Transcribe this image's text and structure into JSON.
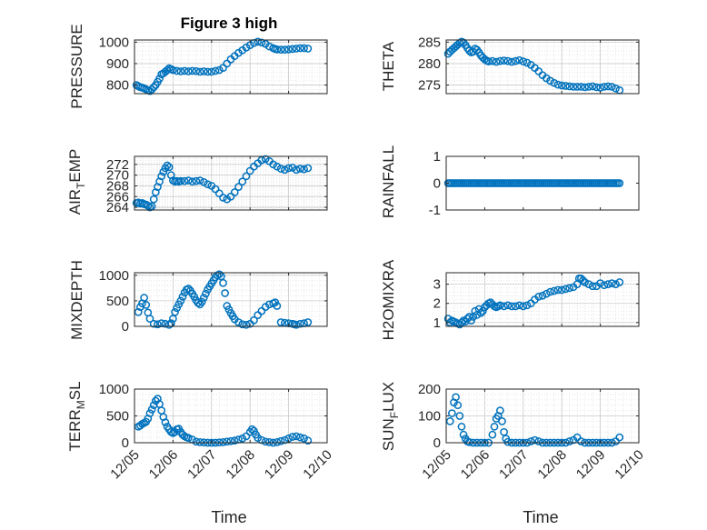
{
  "figure": {
    "title": "Figure 3 high",
    "xlabel": "Time",
    "x_tick_labels": [
      "12/05",
      "12/06",
      "12/07",
      "12/08",
      "12/09",
      "12/10"
    ],
    "marker_color": "#0072BD",
    "axis_color": "#262626",
    "grid_color": "#c8c8c8"
  },
  "chart_data": [
    {
      "type": "scatter",
      "name": "PRESSURE",
      "ylabel": "PRESSURE",
      "xlim": [
        0,
        5
      ],
      "ylim": [
        760,
        1010
      ],
      "yticks": [
        800,
        900,
        1000
      ],
      "grid": true,
      "x": [
        0.05,
        0.1,
        0.15,
        0.2,
        0.25,
        0.3,
        0.35,
        0.4,
        0.45,
        0.5,
        0.55,
        0.6,
        0.65,
        0.7,
        0.75,
        0.8,
        0.85,
        0.9,
        0.95,
        1.0,
        1.1,
        1.2,
        1.3,
        1.4,
        1.5,
        1.6,
        1.7,
        1.8,
        1.9,
        2.0,
        2.1,
        2.2,
        2.3,
        2.4,
        2.5,
        2.6,
        2.7,
        2.8,
        2.9,
        3.0,
        3.1,
        3.2,
        3.3,
        3.4,
        3.5,
        3.6,
        3.65,
        3.7,
        3.8,
        3.9,
        4.0,
        4.1,
        4.2,
        4.3,
        4.4,
        4.5
      ],
      "y": [
        800,
        795,
        790,
        788,
        785,
        780,
        775,
        772,
        780,
        790,
        800,
        815,
        830,
        850,
        855,
        862,
        870,
        878,
        874,
        870,
        866,
        864,
        866,
        864,
        866,
        865,
        862,
        864,
        862,
        862,
        866,
        870,
        880,
        900,
        920,
        935,
        950,
        962,
        975,
        986,
        996,
        1002,
        998,
        992,
        980,
        972,
        968,
        966,
        965,
        965,
        966,
        968,
        970,
        972,
        972,
        970
      ]
    },
    {
      "type": "scatter",
      "name": "THETA",
      "ylabel": "THETA",
      "xlim": [
        0,
        5
      ],
      "ylim": [
        273,
        285.5
      ],
      "yticks": [
        275,
        280,
        285
      ],
      "grid": true,
      "x": [
        0.05,
        0.1,
        0.15,
        0.2,
        0.25,
        0.3,
        0.35,
        0.4,
        0.45,
        0.5,
        0.55,
        0.6,
        0.65,
        0.7,
        0.75,
        0.8,
        0.85,
        0.9,
        0.95,
        1.0,
        1.05,
        1.1,
        1.2,
        1.3,
        1.4,
        1.5,
        1.6,
        1.7,
        1.8,
        1.9,
        2.0,
        2.1,
        2.2,
        2.3,
        2.4,
        2.5,
        2.6,
        2.7,
        2.8,
        2.9,
        3.0,
        3.1,
        3.2,
        3.3,
        3.4,
        3.5,
        3.6,
        3.7,
        3.8,
        3.9,
        4.0,
        4.1,
        4.2,
        4.3,
        4.4,
        4.5
      ],
      "y": [
        282.3,
        282.8,
        283.2,
        283.6,
        284.0,
        284.4,
        284.8,
        285.1,
        284.9,
        284.3,
        283.6,
        283.0,
        282.6,
        282.8,
        283.5,
        283.2,
        282.6,
        281.9,
        281.4,
        281.0,
        280.7,
        280.5,
        280.6,
        280.4,
        280.6,
        280.7,
        280.6,
        280.4,
        280.6,
        280.8,
        280.5,
        280.2,
        279.7,
        279.0,
        278.2,
        277.3,
        276.6,
        276.0,
        275.5,
        275.1,
        274.9,
        274.8,
        274.7,
        274.6,
        274.6,
        274.6,
        274.5,
        274.6,
        274.7,
        274.5,
        274.4,
        274.6,
        274.7,
        274.6,
        274.2,
        273.8
      ]
    },
    {
      "type": "scatter",
      "name": "AIR_TEMP",
      "ylabel": "AIR_TEMP",
      "xlim": [
        0,
        5
      ],
      "ylim": [
        263.5,
        273.5
      ],
      "yticks": [
        264,
        266,
        268,
        270,
        272
      ],
      "grid": true,
      "x": [
        0.05,
        0.1,
        0.15,
        0.2,
        0.25,
        0.3,
        0.35,
        0.4,
        0.45,
        0.5,
        0.55,
        0.6,
        0.65,
        0.7,
        0.75,
        0.8,
        0.85,
        0.9,
        0.95,
        1.0,
        1.05,
        1.1,
        1.15,
        1.2,
        1.3,
        1.4,
        1.5,
        1.6,
        1.7,
        1.8,
        1.9,
        2.0,
        2.1,
        2.2,
        2.3,
        2.4,
        2.5,
        2.6,
        2.7,
        2.8,
        2.9,
        3.0,
        3.1,
        3.2,
        3.3,
        3.4,
        3.5,
        3.6,
        3.7,
        3.8,
        3.9,
        4.0,
        4.1,
        4.2,
        4.3,
        4.4,
        4.5
      ],
      "y": [
        264.8,
        264.9,
        264.7,
        264.8,
        264.6,
        264.5,
        264.3,
        264.0,
        264.2,
        265.5,
        266.8,
        267.8,
        268.8,
        269.8,
        270.6,
        271.3,
        271.8,
        271.5,
        270.0,
        269.0,
        268.8,
        268.9,
        268.8,
        268.9,
        268.9,
        269.0,
        268.8,
        268.9,
        269.0,
        268.7,
        268.3,
        268.0,
        267.4,
        266.6,
        265.8,
        265.5,
        266.0,
        266.8,
        267.8,
        268.8,
        269.8,
        270.8,
        271.6,
        272.2,
        272.8,
        273.0,
        272.6,
        272.0,
        271.6,
        271.2,
        271.0,
        271.3,
        271.4,
        271.0,
        271.2,
        271.1,
        271.3
      ]
    },
    {
      "type": "scatter",
      "name": "RAINFALL",
      "ylabel": "RAINFALL",
      "xlim": [
        0,
        5
      ],
      "ylim": [
        -1,
        1
      ],
      "yticks": [
        -1,
        0,
        1
      ],
      "grid": false,
      "x": [
        0.05,
        0.1,
        0.15,
        0.2,
        0.25,
        0.3,
        0.35,
        0.4,
        0.45,
        0.5,
        0.55,
        0.6,
        0.65,
        0.7,
        0.75,
        0.8,
        0.85,
        0.9,
        0.95,
        1.0,
        1.05,
        1.1,
        1.15,
        1.2,
        1.25,
        1.3,
        1.35,
        1.4,
        1.45,
        1.5,
        1.55,
        1.6,
        1.65,
        1.7,
        1.75,
        1.8,
        1.85,
        1.9,
        1.95,
        2.0,
        2.05,
        2.1,
        2.15,
        2.2,
        2.25,
        2.3,
        2.35,
        2.4,
        2.45,
        2.5,
        2.55,
        2.6,
        2.65,
        2.7,
        2.75,
        2.8,
        2.85,
        2.9,
        2.95,
        3.0,
        3.05,
        3.1,
        3.15,
        3.2,
        3.25,
        3.3,
        3.35,
        3.4,
        3.45,
        3.5,
        3.55,
        3.6,
        3.65,
        3.7,
        3.75,
        3.8,
        3.85,
        3.9,
        3.95,
        4.0,
        4.05,
        4.1,
        4.15,
        4.2,
        4.25,
        4.3,
        4.35,
        4.4,
        4.45,
        4.5
      ],
      "y": [
        0,
        0,
        0,
        0,
        0,
        0,
        0,
        0,
        0,
        0,
        0,
        0,
        0,
        0,
        0,
        0,
        0,
        0,
        0,
        0,
        0,
        0,
        0,
        0,
        0,
        0,
        0,
        0,
        0,
        0,
        0,
        0,
        0,
        0,
        0,
        0,
        0,
        0,
        0,
        0,
        0,
        0,
        0,
        0,
        0,
        0,
        0,
        0,
        0,
        0,
        0,
        0,
        0,
        0,
        0,
        0,
        0,
        0,
        0,
        0,
        0,
        0,
        0,
        0,
        0,
        0,
        0,
        0,
        0,
        0,
        0,
        0,
        0,
        0,
        0,
        0,
        0,
        0,
        0,
        0,
        0,
        0,
        0,
        0,
        0,
        0,
        0,
        0,
        0,
        0
      ]
    },
    {
      "type": "scatter",
      "name": "MIXDEPTH",
      "ylabel": "MIXDEPTH",
      "xlim": [
        0,
        5
      ],
      "ylim": [
        0,
        1050
      ],
      "yticks": [
        0,
        500,
        1000
      ],
      "grid": true,
      "x": [
        0.1,
        0.15,
        0.2,
        0.25,
        0.3,
        0.35,
        0.4,
        0.5,
        0.6,
        0.7,
        0.8,
        0.9,
        0.95,
        1.0,
        1.05,
        1.1,
        1.15,
        1.2,
        1.25,
        1.3,
        1.35,
        1.4,
        1.45,
        1.5,
        1.55,
        1.6,
        1.65,
        1.7,
        1.75,
        1.8,
        1.85,
        1.9,
        1.95,
        2.0,
        2.05,
        2.1,
        2.15,
        2.2,
        2.25,
        2.3,
        2.35,
        2.4,
        2.45,
        2.5,
        2.55,
        2.6,
        2.7,
        2.8,
        2.9,
        3.0,
        3.1,
        3.2,
        3.3,
        3.4,
        3.5,
        3.6,
        3.65,
        3.7,
        3.8,
        3.9,
        4.0,
        4.1,
        4.15,
        4.2,
        4.3,
        4.4,
        4.5
      ],
      "y": [
        280,
        380,
        450,
        560,
        420,
        270,
        150,
        50,
        40,
        60,
        50,
        30,
        60,
        150,
        280,
        360,
        430,
        500,
        580,
        660,
        720,
        740,
        700,
        640,
        580,
        510,
        460,
        430,
        480,
        560,
        640,
        720,
        780,
        840,
        900,
        960,
        1000,
        1020,
        980,
        850,
        650,
        400,
        330,
        260,
        200,
        140,
        80,
        40,
        30,
        50,
        120,
        220,
        300,
        380,
        430,
        450,
        470,
        400,
        80,
        70,
        60,
        50,
        40,
        30,
        50,
        60,
        80
      ]
    },
    {
      "type": "scatter",
      "name": "H2OMIXRA",
      "ylabel": "H2OMIXRA",
      "xlim": [
        0,
        5
      ],
      "ylim": [
        0.8,
        3.6
      ],
      "yticks": [
        1,
        2,
        3
      ],
      "grid": true,
      "x": [
        0.05,
        0.1,
        0.15,
        0.2,
        0.25,
        0.3,
        0.35,
        0.4,
        0.45,
        0.5,
        0.55,
        0.6,
        0.65,
        0.7,
        0.75,
        0.8,
        0.85,
        0.9,
        0.95,
        1.0,
        1.05,
        1.1,
        1.15,
        1.2,
        1.25,
        1.3,
        1.35,
        1.4,
        1.5,
        1.6,
        1.7,
        1.8,
        1.9,
        2.0,
        2.1,
        2.2,
        2.3,
        2.4,
        2.5,
        2.6,
        2.7,
        2.8,
        2.9,
        3.0,
        3.1,
        3.2,
        3.3,
        3.4,
        3.45,
        3.5,
        3.55,
        3.6,
        3.7,
        3.8,
        3.9,
        4.0,
        4.1,
        4.2,
        4.3,
        4.4,
        4.5
      ],
      "y": [
        1.2,
        1.0,
        1.1,
        1.05,
        1.0,
        0.95,
        0.9,
        1.0,
        1.1,
        1.05,
        1.2,
        1.3,
        1.1,
        1.3,
        1.6,
        1.4,
        1.7,
        1.5,
        1.6,
        1.8,
        1.9,
        2.0,
        2.05,
        1.95,
        1.85,
        1.8,
        1.85,
        1.9,
        1.85,
        1.9,
        1.85,
        1.85,
        1.9,
        1.85,
        1.9,
        2.0,
        2.2,
        2.35,
        2.4,
        2.5,
        2.6,
        2.65,
        2.7,
        2.7,
        2.75,
        2.8,
        2.85,
        3.0,
        3.3,
        3.3,
        3.2,
        3.1,
        3.0,
        2.9,
        2.9,
        3.05,
        2.95,
        3.0,
        3.05,
        3.0,
        3.1
      ]
    },
    {
      "type": "scatter",
      "name": "TERR_MSL",
      "ylabel": "TERR_MSL",
      "xlim": [
        0,
        5
      ],
      "ylim": [
        0,
        1000
      ],
      "yticks": [
        0,
        500,
        1000
      ],
      "grid": true,
      "x": [
        0.1,
        0.15,
        0.2,
        0.25,
        0.3,
        0.35,
        0.4,
        0.45,
        0.5,
        0.55,
        0.6,
        0.65,
        0.7,
        0.75,
        0.8,
        0.85,
        0.9,
        0.95,
        1.0,
        1.05,
        1.1,
        1.15,
        1.2,
        1.25,
        1.3,
        1.35,
        1.4,
        1.5,
        1.6,
        1.7,
        1.8,
        1.9,
        2.0,
        2.1,
        2.2,
        2.3,
        2.4,
        2.5,
        2.6,
        2.7,
        2.8,
        2.9,
        3.0,
        3.05,
        3.1,
        3.15,
        3.2,
        3.3,
        3.4,
        3.5,
        3.6,
        3.7,
        3.8,
        3.9,
        4.0,
        4.1,
        4.2,
        4.3,
        4.4,
        4.5
      ],
      "y": [
        300,
        320,
        350,
        370,
        390,
        450,
        550,
        620,
        700,
        780,
        820,
        720,
        600,
        480,
        380,
        300,
        250,
        200,
        180,
        200,
        250,
        260,
        200,
        150,
        120,
        100,
        90,
        60,
        20,
        10,
        5,
        0,
        0,
        0,
        5,
        10,
        20,
        30,
        40,
        60,
        80,
        120,
        200,
        250,
        220,
        150,
        90,
        50,
        20,
        10,
        0,
        10,
        30,
        50,
        80,
        110,
        120,
        100,
        80,
        40
      ]
    },
    {
      "type": "scatter",
      "name": "SUN_FLUX",
      "ylabel": "SUN_FLUX",
      "xlim": [
        0,
        5
      ],
      "ylim": [
        0,
        200
      ],
      "yticks": [
        0,
        100,
        200
      ],
      "grid": true,
      "x": [
        0.1,
        0.15,
        0.2,
        0.25,
        0.3,
        0.35,
        0.4,
        0.45,
        0.5,
        0.55,
        0.6,
        0.7,
        0.8,
        0.9,
        1.0,
        1.1,
        1.2,
        1.25,
        1.3,
        1.35,
        1.4,
        1.45,
        1.5,
        1.55,
        1.6,
        1.7,
        1.8,
        1.9,
        2.0,
        2.1,
        2.2,
        2.3,
        2.4,
        2.5,
        2.6,
        2.7,
        2.8,
        2.9,
        3.0,
        3.1,
        3.2,
        3.3,
        3.4,
        3.5,
        3.6,
        3.7,
        3.8,
        3.9,
        4.0,
        4.1,
        4.2,
        4.3,
        4.4,
        4.5
      ],
      "y": [
        80,
        110,
        150,
        170,
        140,
        100,
        60,
        30,
        15,
        5,
        2,
        0,
        0,
        0,
        0,
        0,
        30,
        60,
        90,
        100,
        120,
        80,
        40,
        15,
        3,
        0,
        0,
        0,
        0,
        0,
        5,
        10,
        5,
        0,
        0,
        0,
        0,
        0,
        0,
        0,
        5,
        10,
        20,
        5,
        0,
        0,
        0,
        0,
        0,
        0,
        0,
        0,
        5,
        20
      ]
    }
  ]
}
